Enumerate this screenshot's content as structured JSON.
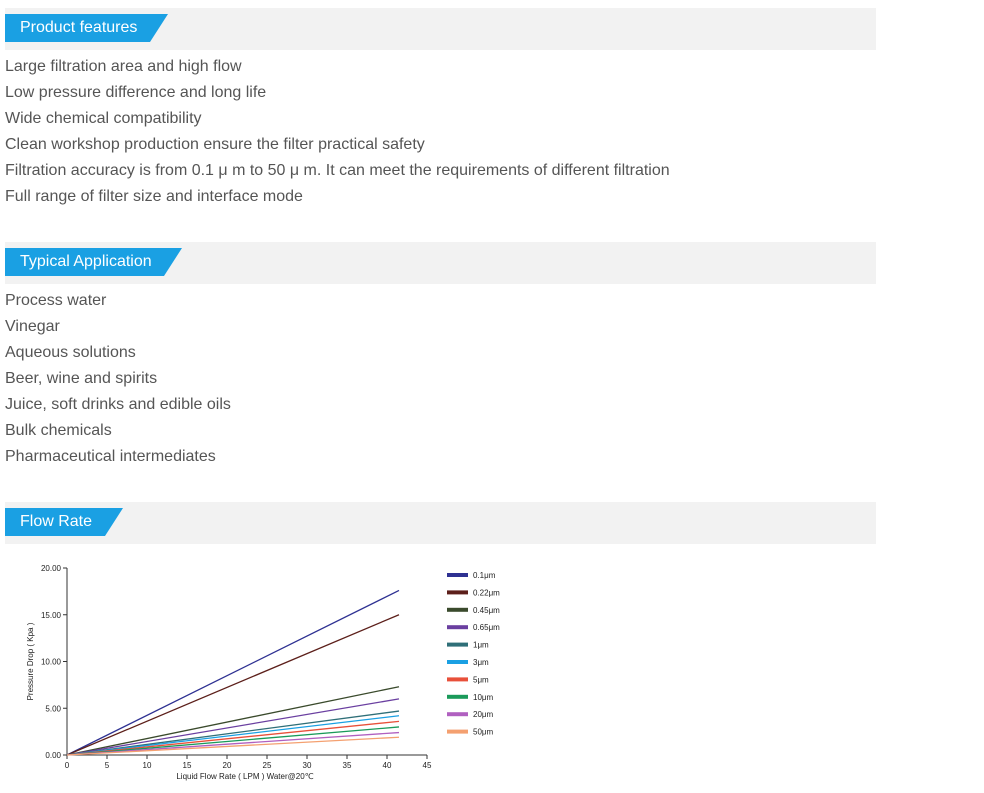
{
  "sections": {
    "features": {
      "title": "Product features",
      "items": [
        "Large filtration area and high flow",
        "Low pressure difference and long life",
        "Wide chemical compatibility",
        "Clean workshop production ensure the filter practical safety",
        "Filtration accuracy is from 0.1 μ m to 50 μ m. It can meet the requirements of different filtration",
        "Full range of filter size and interface mode"
      ]
    },
    "applications": {
      "title": "Typical Application",
      "items": [
        "Process water",
        "Vinegar",
        "Aqueous solutions",
        "Beer, wine and spirits",
        "Juice, soft drinks and edible oils",
        "Bulk chemicals",
        "Pharmaceutical intermediates"
      ]
    },
    "flow": {
      "title": "Flow Rate"
    }
  },
  "colors": {
    "accent": "#1aa0e3",
    "bar_bg": "#f2f2f2",
    "text": "#555555"
  },
  "chart_data": {
    "type": "line",
    "xlabel": "Liquid Flow Rate ( LPM ) Water@20℃",
    "ylabel": "Pressure Drop ( Kpa )",
    "xlim": [
      0,
      45
    ],
    "ylim": [
      0,
      20
    ],
    "x_ticks": [
      "0",
      "5",
      "10",
      "15",
      "20",
      "25",
      "30",
      "35",
      "40",
      "45"
    ],
    "y_ticks": [
      "0.00",
      "5.00",
      "10.00",
      "15.00",
      "20.00"
    ],
    "grid": false,
    "legend_position": "right",
    "series": [
      {
        "name": "0.1μm",
        "color": "#2e3192",
        "x": [
          0,
          41.5
        ],
        "y": [
          0,
          17.6
        ]
      },
      {
        "name": "0.22μm",
        "color": "#5c1f1a",
        "x": [
          0,
          41.5
        ],
        "y": [
          0,
          15.0
        ]
      },
      {
        "name": "0.45μm",
        "color": "#3a4a2c",
        "x": [
          0,
          41.5
        ],
        "y": [
          0,
          7.3
        ]
      },
      {
        "name": "0.65μm",
        "color": "#6a3fa0",
        "x": [
          0,
          41.5
        ],
        "y": [
          0,
          6.0
        ]
      },
      {
        "name": "1μm",
        "color": "#2f6f78",
        "x": [
          0,
          41.5
        ],
        "y": [
          0,
          4.7
        ]
      },
      {
        "name": "3μm",
        "color": "#1aa0e3",
        "x": [
          0,
          41.5
        ],
        "y": [
          0,
          4.2
        ]
      },
      {
        "name": "5μm",
        "color": "#e8503a",
        "x": [
          0,
          41.5
        ],
        "y": [
          0,
          3.6
        ]
      },
      {
        "name": "10μm",
        "color": "#1a9a5a",
        "x": [
          0,
          41.5
        ],
        "y": [
          0,
          3.0
        ]
      },
      {
        "name": "20μm",
        "color": "#b060c0",
        "x": [
          0,
          41.5
        ],
        "y": [
          0,
          2.4
        ]
      },
      {
        "name": "50μm",
        "color": "#f4a070",
        "x": [
          0,
          41.5
        ],
        "y": [
          0,
          1.9
        ]
      }
    ]
  }
}
